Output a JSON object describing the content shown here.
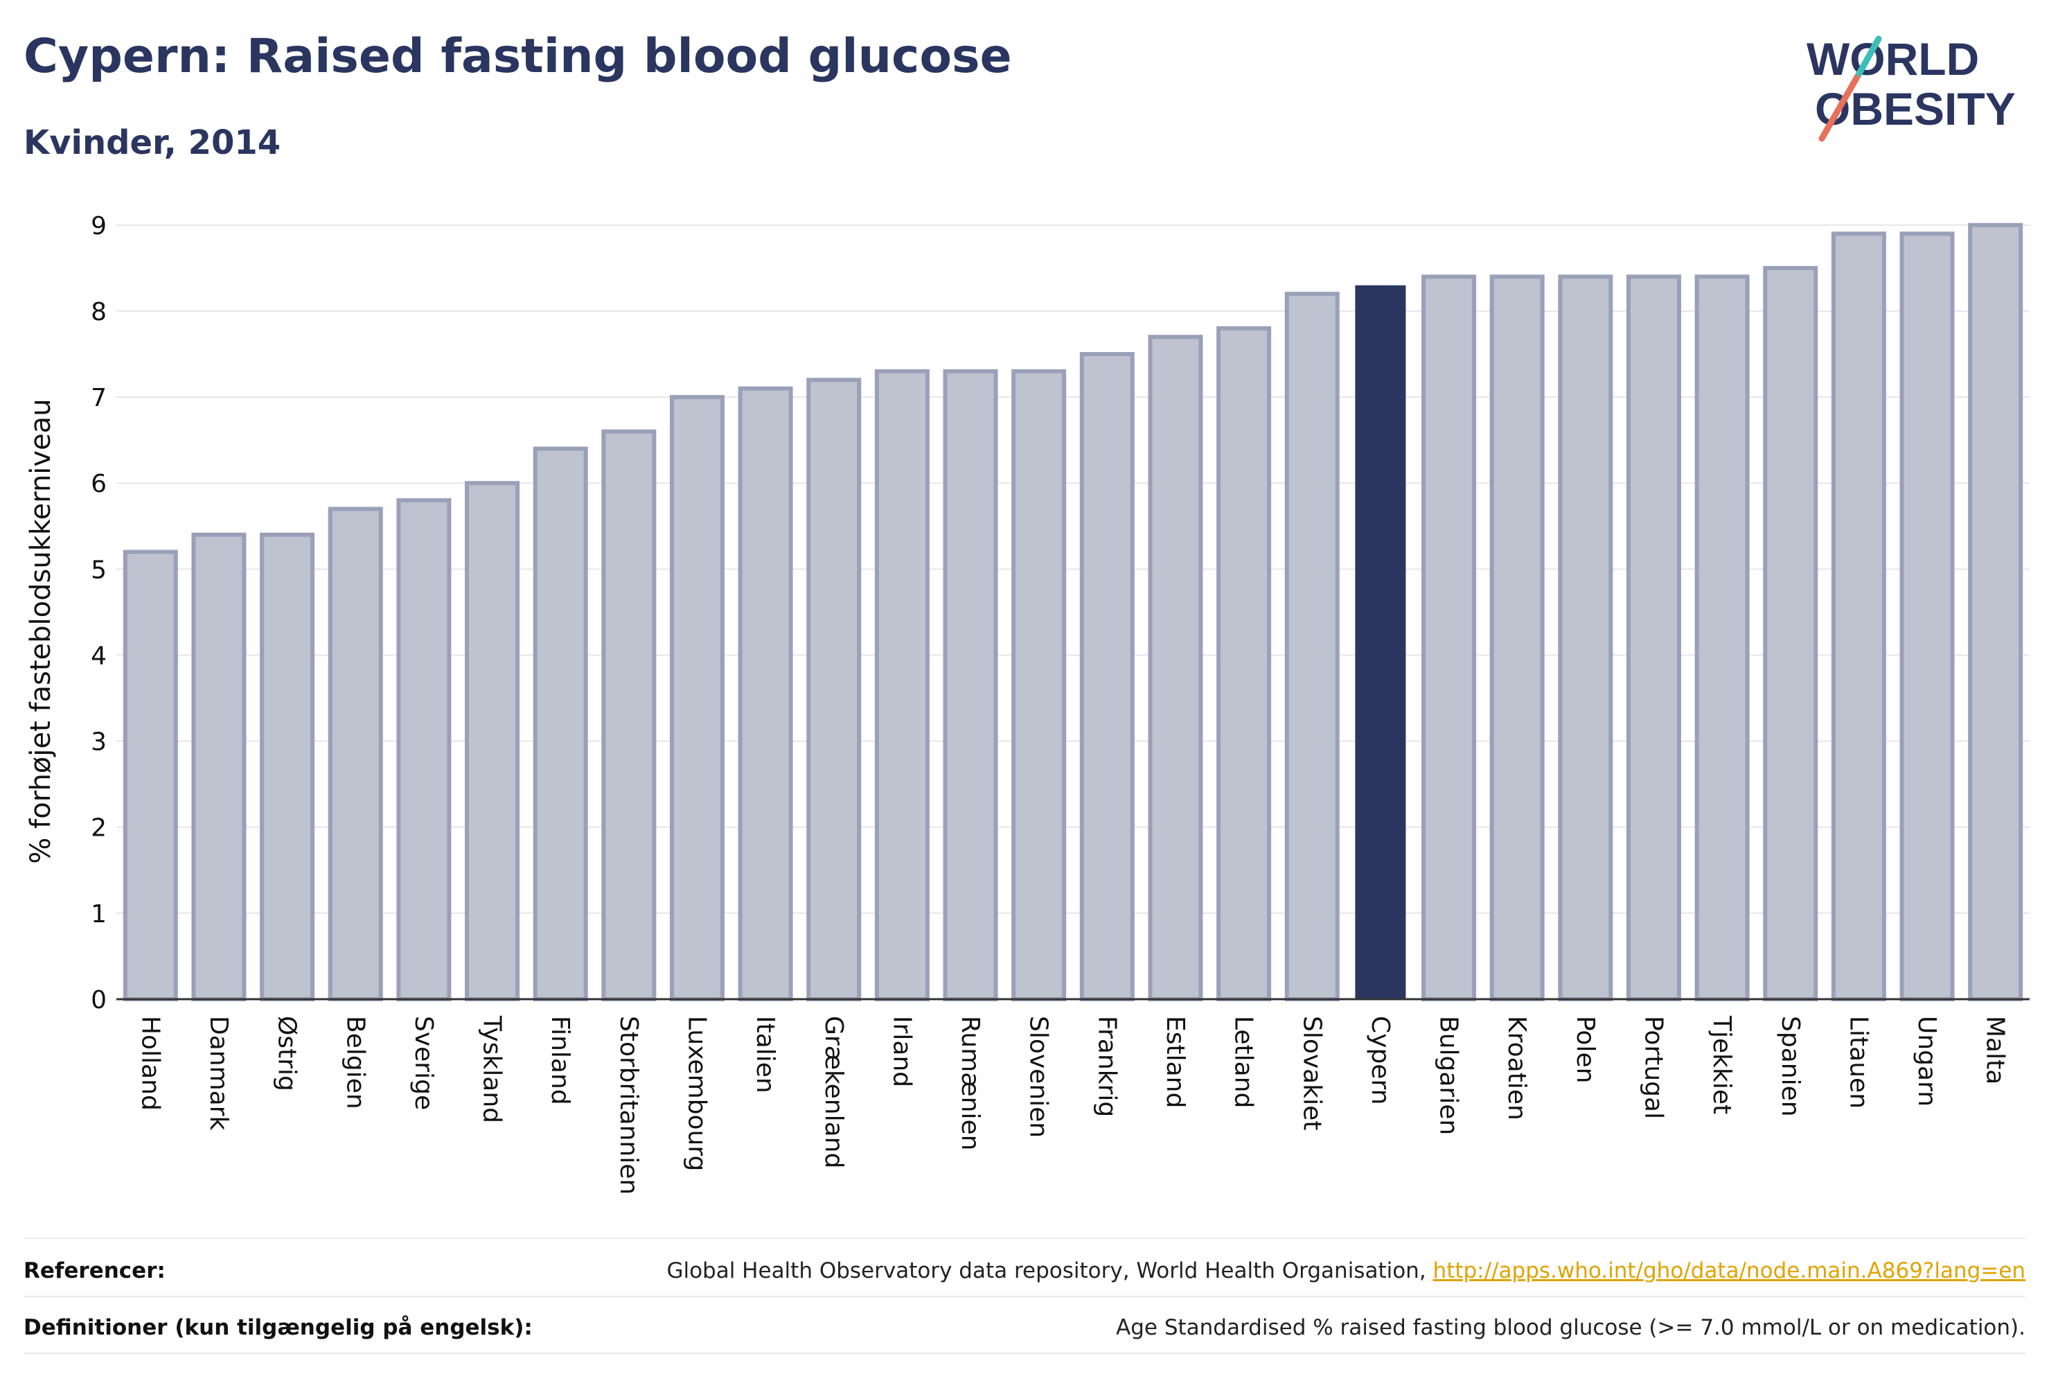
{
  "header": {
    "title": "Cypern: Raised fasting blood glucose",
    "subtitle": "Kvinder, 2014",
    "logo_line1": "WORLD",
    "logo_line2": "OBESITY"
  },
  "chart_data": {
    "type": "bar",
    "ylabel": "% forhøjet fasteblodsukkerniveau",
    "xlabel": "",
    "ylim": [
      0,
      9.2
    ],
    "yticks": [
      0,
      1,
      2,
      3,
      4,
      5,
      6,
      7,
      8,
      9
    ],
    "grid": true,
    "categories": [
      "Holland",
      "Danmark",
      "Østrig",
      "Belgien",
      "Sverige",
      "Tyskland",
      "Finland",
      "Storbritannien",
      "Luxembourg",
      "Italien",
      "Grækenland",
      "Irland",
      "Rumænien",
      "Slovenien",
      "Frankrig",
      "Estland",
      "Letland",
      "Slovakiet",
      "Cypern",
      "Bulgarien",
      "Kroatien",
      "Polen",
      "Portugal",
      "Tjekkiet",
      "Spanien",
      "Litauen",
      "Ungarn",
      "Malta"
    ],
    "values": [
      5.2,
      5.4,
      5.4,
      5.7,
      5.8,
      6.0,
      6.4,
      6.6,
      7.0,
      7.1,
      7.2,
      7.3,
      7.3,
      7.3,
      7.5,
      7.7,
      7.8,
      8.2,
      8.3,
      8.4,
      8.4,
      8.4,
      8.4,
      8.4,
      8.5,
      8.9,
      8.9,
      9.0
    ],
    "highlight": "Cypern",
    "colors": {
      "bar_fill": "#bfc2cf",
      "bar_border": "#9aa0b8",
      "highlight": "#2a3560",
      "grid": "#e6e6ec",
      "axis": "#333333"
    }
  },
  "footer": {
    "references_label": "Referencer:",
    "references_text": "Global Health Observatory data repository, World Health Organisation, ",
    "references_link": "http://apps.who.int/gho/data/node.main.A869?lang=en",
    "definitions_label": "Definitioner (kun tilgængelig på engelsk):",
    "definitions_text": "Age Standardised % raised fasting blood glucose (>= 7.0 mmol/L or on medication)."
  }
}
